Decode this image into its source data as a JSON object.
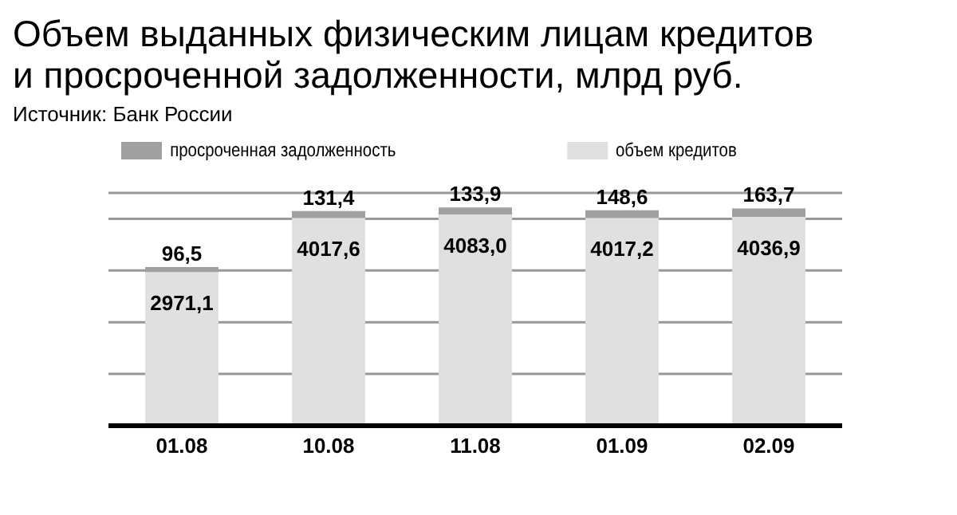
{
  "chart_data": {
    "type": "bar",
    "title": "Объем выданных физическим лицам кредитов\nи просроченной задолженности, млрд руб.",
    "annotations": [
      "Источник: Банк России"
    ],
    "categories": [
      "01.08",
      "10.08",
      "11.08",
      "01.09",
      "02.09"
    ],
    "stacked": true,
    "series": [
      {
        "name": "объем кредитов",
        "color": "#e0e0e0",
        "values": [
          2971.1,
          4017.6,
          4083.0,
          4017.2,
          4036.9
        ],
        "value_labels": [
          "2971,1",
          "4017,6",
          "4083,0",
          "4017,2",
          "4036,9"
        ]
      },
      {
        "name": "просроченная задолженность",
        "color": "#a0a0a0",
        "values": [
          96.5,
          131.4,
          133.9,
          148.6,
          163.7
        ],
        "value_labels": [
          "96,5",
          "131,4",
          "133,9",
          "148,6",
          "163,7"
        ]
      }
    ],
    "ylim": [
      0,
      4500
    ],
    "yticks": [
      {
        "value": 1000,
        "label": null
      },
      {
        "value": 2000,
        "label": null
      },
      {
        "value": 3000,
        "label": null
      },
      {
        "value": 4000,
        "label": null
      }
    ],
    "grid": "y",
    "tick_labels": "x",
    "legend": "top"
  }
}
